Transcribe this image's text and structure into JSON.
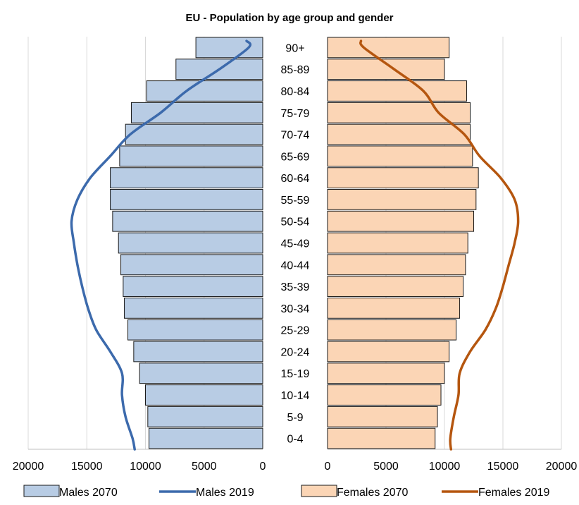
{
  "chart_data": {
    "type": "bar",
    "title": "EU - Population by age group and gender",
    "categories": [
      "0-4",
      "5-9",
      "10-14",
      "15-19",
      "20-24",
      "25-29",
      "30-34",
      "35-39",
      "40-44",
      "45-49",
      "50-54",
      "55-59",
      "60-64",
      "65-69",
      "70-74",
      "75-79",
      "80-84",
      "85-89",
      "90+"
    ],
    "left_panel": {
      "xlim": [
        20000,
        0
      ],
      "ticks": [
        "20000",
        "15000",
        "10000",
        "5000",
        "0"
      ],
      "series": [
        {
          "name": "Males 2070",
          "kind": "bar",
          "values": [
            9700,
            9800,
            10000,
            10500,
            11000,
            11500,
            11800,
            11900,
            12100,
            12300,
            12800,
            13000,
            13000,
            12200,
            11700,
            11200,
            9900,
            7400,
            5700
          ]
        },
        {
          "name": "Males 2019",
          "kind": "line",
          "values": [
            11100,
            11700,
            12000,
            12000,
            13000,
            14200,
            14900,
            15400,
            15800,
            16100,
            16300,
            15800,
            14700,
            13000,
            11300,
            8700,
            6500,
            3700,
            1200
          ]
        }
      ]
    },
    "right_panel": {
      "xlim": [
        0,
        20000
      ],
      "ticks": [
        "0",
        "5000",
        "10000",
        "15000",
        "20000"
      ],
      "series": [
        {
          "name": "Females 2070",
          "kind": "bar",
          "values": [
            9200,
            9400,
            9700,
            10000,
            10400,
            11000,
            11300,
            11600,
            11800,
            12000,
            12500,
            12700,
            12900,
            12400,
            12200,
            12200,
            11900,
            10000,
            10400
          ]
        },
        {
          "name": "Females 2019",
          "kind": "line",
          "values": [
            10500,
            10800,
            11200,
            11300,
            12200,
            13500,
            14400,
            15000,
            15500,
            16000,
            16300,
            16000,
            14800,
            13000,
            11700,
            9500,
            8200,
            5700,
            3100
          ]
        }
      ]
    },
    "colors": {
      "males_bar": "#b8cce4",
      "females_bar": "#fbd5b5",
      "males_line": "#3c6aac",
      "females_line": "#b5560f",
      "bar_stroke": "#1a1a1a",
      "grid": "#d9d9d9"
    },
    "grid": true,
    "legend_position": "bottom"
  }
}
